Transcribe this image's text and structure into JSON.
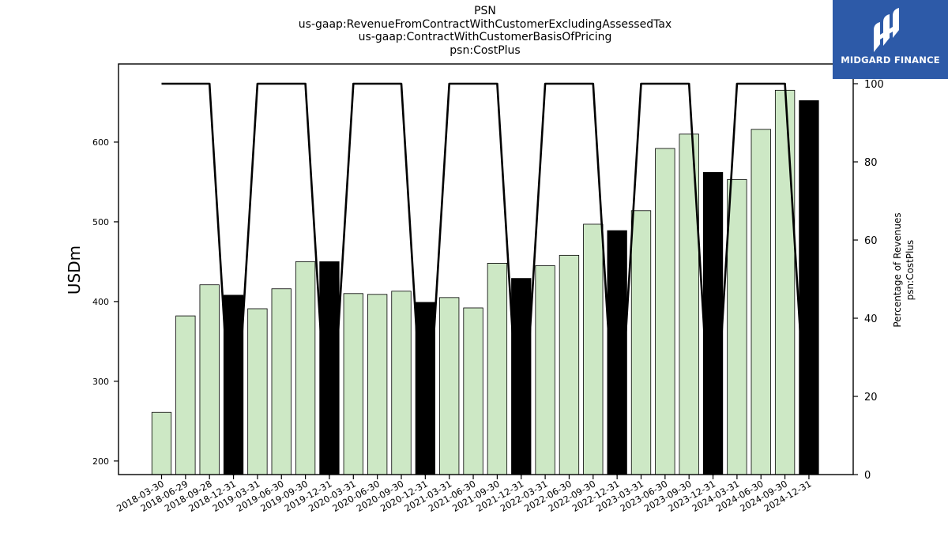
{
  "logo": {
    "text": "MIDGARD FINANCE",
    "color": "#2d5aa8"
  },
  "chart_data": {
    "type": "bar",
    "title": [
      "PSN",
      "us-gaap:RevenueFromContractWithCustomerExcludingAssessedTax",
      "us-gaap:ContractWithCustomerBasisOfPricing",
      "psn:CostPlus"
    ],
    "ylabel": "USDm",
    "y2label": [
      "Percentage of Revenues",
      "psn:CostPlus"
    ],
    "ylim": [
      183,
      698
    ],
    "y2lim": [
      0,
      100
    ],
    "yticks": [
      200,
      300,
      400,
      500,
      600
    ],
    "y2ticks": [
      0,
      20,
      40,
      60,
      80,
      100
    ],
    "categories": [
      "2018-03-30",
      "2018-06-29",
      "2018-09-28",
      "2018-12-31",
      "2019-03-31",
      "2019-06-30",
      "2019-09-30",
      "2019-12-31",
      "2020-03-31",
      "2020-06-30",
      "2020-09-30",
      "2020-12-31",
      "2021-03-31",
      "2021-06-30",
      "2021-09-30",
      "2021-12-31",
      "2022-03-31",
      "2022-06-30",
      "2022-09-30",
      "2022-12-31",
      "2023-03-31",
      "2023-06-30",
      "2023-09-30",
      "2023-12-31",
      "2024-03-31",
      "2024-06-30",
      "2024-09-30",
      "2024-12-31"
    ],
    "series": [
      {
        "values": [
          261,
          382,
          421,
          408,
          391,
          416,
          450,
          450,
          410,
          409,
          413,
          399,
          405,
          392,
          448,
          429,
          445,
          458,
          497,
          489,
          514,
          592,
          610,
          562,
          553,
          616,
          665,
          652
        ]
      },
      {
        "values": [
          100,
          100,
          100,
          0,
          100,
          100,
          100,
          0,
          100,
          100,
          100,
          0,
          100,
          100,
          100,
          0,
          100,
          100,
          100,
          0,
          100,
          100,
          100,
          0,
          100,
          100,
          100,
          0
        ]
      }
    ],
    "bar_colors": {
      "quarter": "#cde8c5",
      "year_end": "#000000"
    },
    "grid": false
  }
}
